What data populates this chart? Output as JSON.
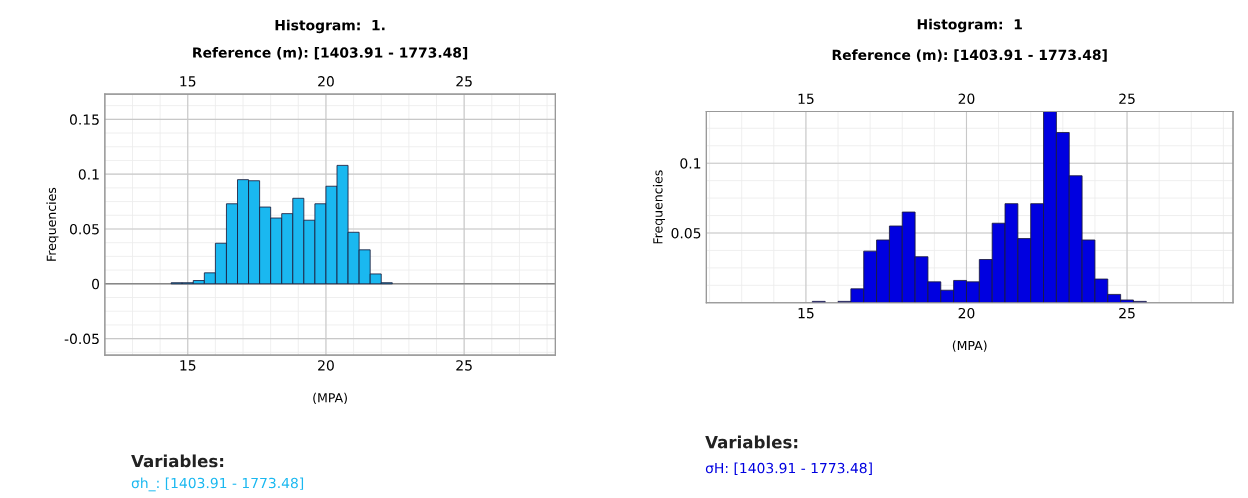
{
  "chart_data": [
    {
      "type": "histogram",
      "title": "Histogram:  1.",
      "subtitle": "Reference (m): [1403.91 - 1773.48]",
      "xlabel": "(MPA)",
      "ylabel": "Frequencies",
      "color": "#1ab8f0",
      "bins": [
        14.4,
        14.8,
        15.2,
        15.6,
        16.0,
        16.4,
        16.8,
        17.2,
        17.6,
        18.0,
        18.4,
        18.8,
        19.2,
        19.6,
        20.0,
        20.4,
        20.8,
        21.2,
        21.6,
        22.0,
        22.4
      ],
      "values": [
        0.001,
        0.001,
        0.003,
        0.01,
        0.037,
        0.073,
        0.095,
        0.094,
        0.07,
        0.06,
        0.064,
        0.078,
        0.058,
        0.073,
        0.089,
        0.108,
        0.047,
        0.031,
        0.009,
        0.001
      ],
      "xlim": [
        12,
        28.3
      ],
      "xticks": [
        15,
        20,
        25
      ],
      "x2lim": [
        12,
        28.3
      ],
      "x2ticks": [
        15,
        20,
        25
      ],
      "ylim": [
        -0.065,
        0.173
      ],
      "yticks": [
        -0.05,
        0,
        0.05,
        0.1,
        0.15
      ],
      "grid": true,
      "annotations": [
        "Variables:",
        "σh_: [1403.91 - 1773.48]"
      ]
    },
    {
      "type": "histogram",
      "title": "Histogram:  1",
      "subtitle": "Reference (m): [1403.91 - 1773.48]",
      "xlabel": "(MPA)",
      "ylabel": "Frequencies",
      "color": "#0000e0",
      "bins": [
        15.2,
        15.6,
        16.0,
        16.4,
        16.8,
        17.2,
        17.6,
        18.0,
        18.4,
        18.8,
        19.2,
        19.6,
        20.0,
        20.4,
        20.8,
        21.2,
        21.6,
        22.0,
        22.4,
        22.8,
        23.2,
        23.6,
        24.0,
        24.4,
        24.8,
        25.2,
        25.6
      ],
      "values": [
        0.001,
        0,
        0.001,
        0.01,
        0.037,
        0.045,
        0.055,
        0.065,
        0.033,
        0.015,
        0.009,
        0.016,
        0.015,
        0.031,
        0.057,
        0.071,
        0.046,
        0.071,
        0.137,
        0.122,
        0.091,
        0.045,
        0.017,
        0.006,
        0.002,
        0.001
      ],
      "xlim": [
        11.9,
        28.3
      ],
      "xticks": [
        15,
        20,
        25
      ],
      "x2lim": [
        11.9,
        28.3
      ],
      "x2ticks": [
        15,
        20,
        25
      ],
      "ylim": [
        0,
        0.137
      ],
      "yticks": [
        0.05,
        0.1
      ],
      "grid": true,
      "annotations": [
        "Variables:",
        "σH: [1403.91 - 1773.48]"
      ]
    }
  ]
}
